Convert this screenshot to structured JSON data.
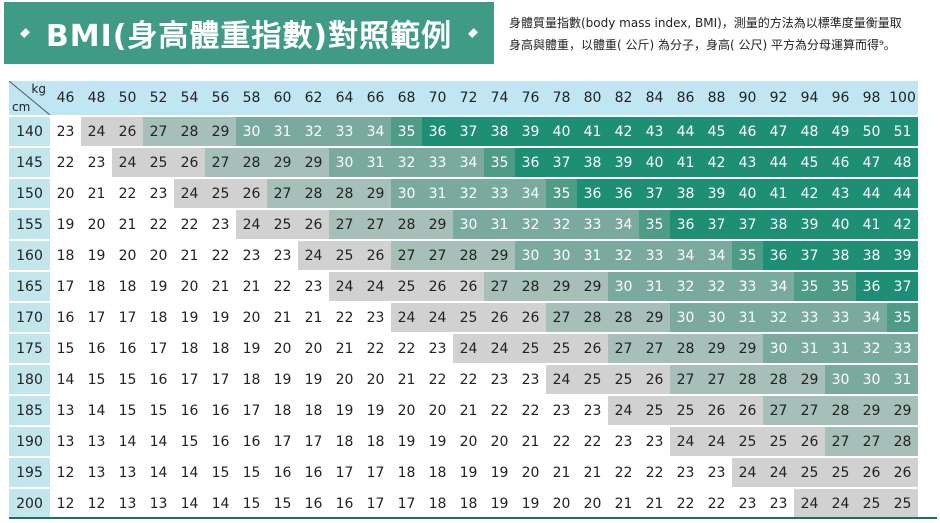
{
  "header": {
    "title": "BMI(身高體重指數)對照範例",
    "description_lines": [
      "身體質量指數(body mass index, BMI)，測量的方法為以標準度量衡量取",
      "身高與體重，以體重( 公斤) 為分子，身高( 公尺) 平方為分母運算而得⁹。"
    ]
  },
  "table": {
    "corner_top": "kg",
    "corner_bottom": "cm",
    "weights": [
      "46",
      "48",
      "50",
      "52",
      "54",
      "56",
      "58",
      "60",
      "62",
      "64",
      "66",
      "68",
      "70",
      "72",
      "74",
      "76",
      "78",
      "80",
      "82",
      "84",
      "86",
      "88",
      "90",
      "92",
      "94",
      "96",
      "98",
      "100"
    ],
    "rows": [
      {
        "height": "140",
        "values": [
          23,
          24,
          26,
          27,
          28,
          29,
          30,
          31,
          32,
          33,
          34,
          35,
          36,
          37,
          38,
          39,
          40,
          41,
          42,
          43,
          44,
          45,
          46,
          47,
          48,
          49,
          50,
          51
        ]
      },
      {
        "height": "145",
        "values": [
          22,
          23,
          24,
          25,
          26,
          27,
          28,
          29,
          29,
          30,
          31,
          32,
          33,
          34,
          35,
          36,
          37,
          38,
          39,
          40,
          41,
          42,
          43,
          44,
          45,
          46,
          47,
          48
        ]
      },
      {
        "height": "150",
        "values": [
          20,
          21,
          22,
          23,
          24,
          25,
          26,
          27,
          28,
          28,
          29,
          30,
          31,
          32,
          33,
          34,
          35,
          36,
          36,
          37,
          38,
          39,
          40,
          41,
          42,
          43,
          44,
          44
        ]
      },
      {
        "height": "155",
        "values": [
          19,
          20,
          21,
          22,
          22,
          23,
          24,
          25,
          26,
          27,
          27,
          28,
          29,
          30,
          31,
          32,
          32,
          33,
          34,
          35,
          36,
          37,
          37,
          38,
          39,
          40,
          41,
          42
        ]
      },
      {
        "height": "160",
        "values": [
          18,
          19,
          20,
          20,
          21,
          22,
          23,
          23,
          24,
          25,
          26,
          27,
          27,
          28,
          29,
          30,
          30,
          31,
          32,
          33,
          34,
          34,
          35,
          36,
          37,
          38,
          38,
          39
        ]
      },
      {
        "height": "165",
        "values": [
          17,
          18,
          18,
          19,
          20,
          21,
          21,
          22,
          23,
          24,
          24,
          25,
          26,
          26,
          27,
          28,
          29,
          29,
          30,
          31,
          32,
          32,
          33,
          34,
          35,
          35,
          36,
          37
        ]
      },
      {
        "height": "170",
        "values": [
          16,
          17,
          17,
          18,
          19,
          19,
          20,
          21,
          21,
          22,
          23,
          24,
          24,
          25,
          26,
          26,
          27,
          28,
          28,
          29,
          30,
          30,
          31,
          32,
          33,
          33,
          34,
          35
        ]
      },
      {
        "height": "175",
        "values": [
          15,
          16,
          16,
          17,
          18,
          18,
          19,
          20,
          20,
          21,
          22,
          22,
          23,
          24,
          24,
          25,
          25,
          26,
          27,
          27,
          28,
          29,
          29,
          30,
          31,
          31,
          32,
          33
        ]
      },
      {
        "height": "180",
        "values": [
          14,
          15,
          15,
          16,
          17,
          17,
          18,
          19,
          19,
          20,
          20,
          21,
          22,
          22,
          23,
          23,
          24,
          25,
          25,
          26,
          27,
          27,
          28,
          28,
          29,
          30,
          30,
          31
        ]
      },
      {
        "height": "185",
        "values": [
          13,
          14,
          15,
          15,
          16,
          16,
          17,
          18,
          18,
          19,
          19,
          20,
          20,
          21,
          22,
          22,
          23,
          23,
          24,
          25,
          25,
          26,
          26,
          27,
          27,
          28,
          29,
          29
        ]
      },
      {
        "height": "190",
        "values": [
          13,
          13,
          14,
          14,
          15,
          16,
          16,
          17,
          17,
          18,
          18,
          19,
          19,
          20,
          20,
          21,
          22,
          22,
          23,
          23,
          24,
          24,
          25,
          25,
          26,
          27,
          27,
          28
        ]
      },
      {
        "height": "195",
        "values": [
          12,
          13,
          13,
          14,
          14,
          15,
          15,
          16,
          16,
          17,
          17,
          18,
          18,
          19,
          19,
          20,
          21,
          21,
          22,
          22,
          23,
          23,
          24,
          24,
          25,
          25,
          26,
          26
        ]
      },
      {
        "height": "200",
        "values": [
          12,
          12,
          13,
          13,
          14,
          14,
          15,
          15,
          16,
          16,
          17,
          17,
          18,
          18,
          19,
          19,
          20,
          20,
          21,
          21,
          22,
          22,
          23,
          23,
          24,
          24,
          25,
          25
        ]
      }
    ]
  }
}
